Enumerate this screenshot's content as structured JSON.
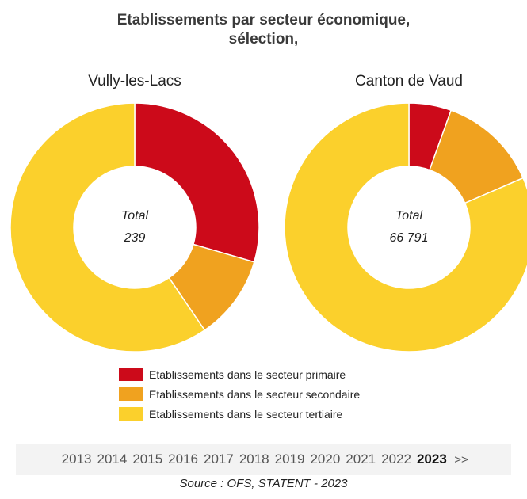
{
  "title_line1": "Etablissements par secteur économique,",
  "title_line2": "sélection,",
  "colors": {
    "primaire": "#cc0a1a",
    "secondaire": "#f0a21f",
    "tertiaire": "#fbd02c"
  },
  "chart_data": [
    {
      "type": "pie",
      "title": "Vully-les-Lacs",
      "center_label": "Total",
      "center_value": "239",
      "slices": [
        {
          "name": "Etablissements dans le secteur primaire",
          "value": 29.5
        },
        {
          "name": "Etablissements dans le secteur secondaire",
          "value": 11.0
        },
        {
          "name": "Etablissements dans le secteur tertiaire",
          "value": 59.5
        }
      ]
    },
    {
      "type": "pie",
      "title": "Canton de Vaud",
      "center_label": "Total",
      "center_value": "66 791",
      "slices": [
        {
          "name": "Etablissements dans le secteur primaire",
          "value": 5.5
        },
        {
          "name": "Etablissements dans le secteur secondaire",
          "value": 13.0
        },
        {
          "name": "Etablissements dans le secteur tertiaire",
          "value": 81.5
        }
      ]
    }
  ],
  "legend": [
    {
      "label": "Etablissements dans le secteur primaire",
      "color_key": "primaire"
    },
    {
      "label": "Etablissements dans le secteur secondaire",
      "color_key": "secondaire"
    },
    {
      "label": "Etablissements dans le secteur tertiaire",
      "color_key": "tertiaire"
    }
  ],
  "years": [
    "2013",
    "2014",
    "2015",
    "2016",
    "2017",
    "2018",
    "2019",
    "2020",
    "2021",
    "2022",
    "2023"
  ],
  "selected_year": "2023",
  "next_label": ">>",
  "source": "Source : OFS, STATENT - 2023"
}
